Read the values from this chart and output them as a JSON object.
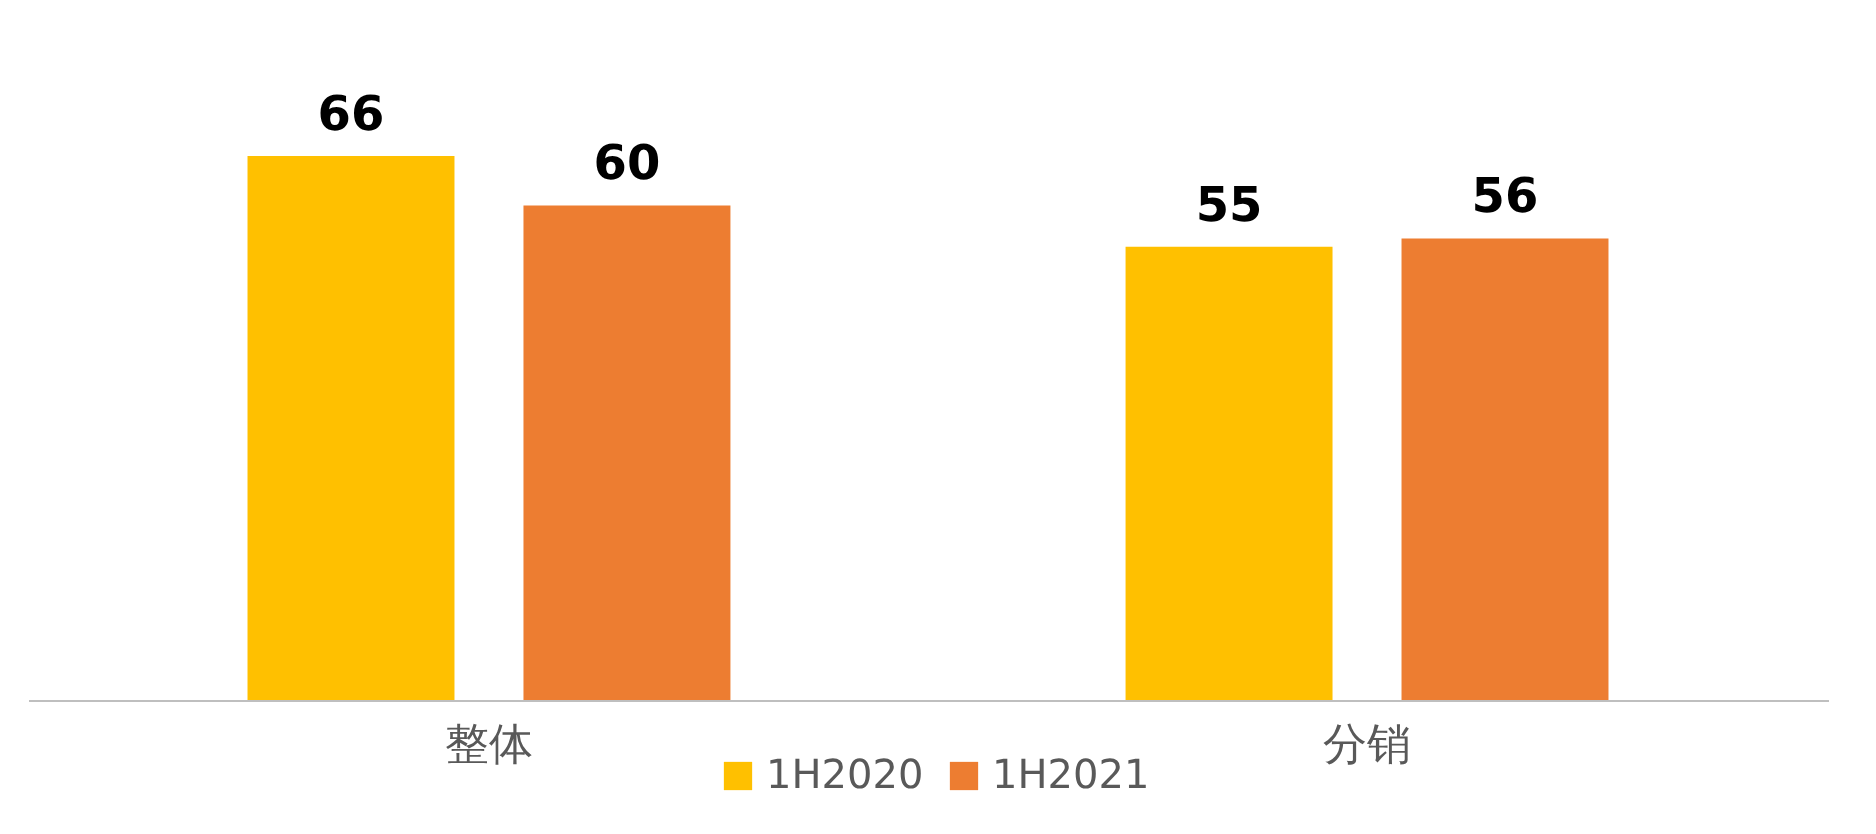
{
  "chart_data": {
    "type": "bar",
    "categories": [
      "整体",
      "分销"
    ],
    "series": [
      {
        "name": "1H2020",
        "color": "#ffc000",
        "values": [
          66,
          55
        ]
      },
      {
        "name": "1H2021",
        "color": "#ed7d31",
        "values": [
          60,
          56
        ]
      }
    ],
    "data_labels": true,
    "legend": "bottom",
    "grid": false
  }
}
